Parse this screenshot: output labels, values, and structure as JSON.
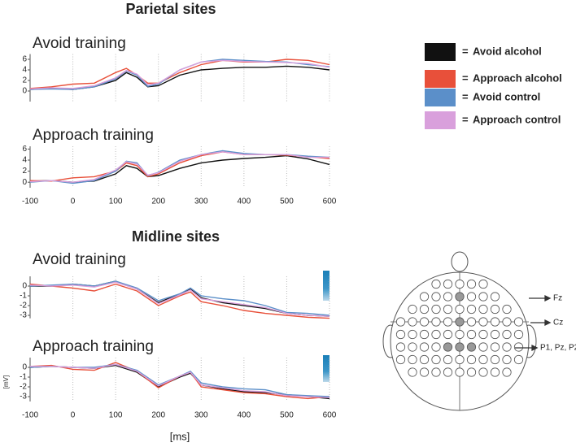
{
  "sections": [
    "Parietal sites",
    "Midline sites"
  ],
  "legend_separator": "=",
  "electrode_labels": [
    "Fz",
    "Cz",
    "P1, Pz, P2"
  ],
  "chart_data": [
    {
      "type": "line",
      "title": "Avoid training",
      "x": [
        -100,
        -50,
        0,
        50,
        100,
        125,
        150,
        175,
        200,
        250,
        300,
        350,
        400,
        450,
        500,
        550,
        600
      ],
      "xlim": [
        -100,
        600
      ],
      "xticks": [
        -100,
        0,
        100,
        200,
        300,
        400,
        500,
        600
      ],
      "show_xtick_labels": false,
      "ylim": [
        -2,
        7
      ],
      "yticks": [
        0,
        2,
        4,
        6
      ],
      "series": [
        {
          "name": "Avoid alcohol",
          "color": "#111111",
          "values": [
            0.3,
            0.5,
            0.3,
            0.8,
            2,
            3.5,
            2.6,
            0.8,
            1,
            3,
            4,
            4.3,
            4.5,
            4.5,
            4.7,
            4.5,
            4
          ]
        },
        {
          "name": "Approach alcohol",
          "color": "#e8503a",
          "values": [
            0.5,
            0.8,
            1.3,
            1.5,
            3.5,
            4.3,
            3,
            1.5,
            1.5,
            3.5,
            5,
            5.8,
            5.5,
            5.5,
            6,
            5.8,
            5
          ]
        },
        {
          "name": "Avoid control",
          "color": "#5b8fc9",
          "values": [
            0.3,
            0.4,
            0.3,
            0.8,
            2.3,
            3.8,
            3,
            0.9,
            1.3,
            4,
            5.5,
            6,
            5.8,
            5.6,
            5.5,
            5,
            4.6
          ]
        },
        {
          "name": "Approach control",
          "color": "#d9a0dc",
          "values": [
            0.4,
            0.6,
            0.5,
            1,
            2.5,
            3.9,
            3.2,
            1.2,
            1.5,
            4,
            5.5,
            5.8,
            5.6,
            5.5,
            5.4,
            5.2,
            4.5
          ]
        }
      ]
    },
    {
      "type": "line",
      "title": "Approach training",
      "x": [
        -100,
        -50,
        0,
        50,
        100,
        125,
        150,
        175,
        200,
        250,
        300,
        350,
        400,
        450,
        500,
        550,
        600
      ],
      "xlim": [
        -100,
        600
      ],
      "xticks": [
        -100,
        0,
        100,
        200,
        300,
        400,
        500,
        600
      ],
      "show_xtick_labels": true,
      "ylim": [
        -1,
        6.5
      ],
      "yticks": [
        0,
        2,
        4,
        6
      ],
      "series": [
        {
          "color": "#111111",
          "values": [
            0.2,
            0.3,
            0,
            0.2,
            1.5,
            3,
            2.5,
            1,
            1.2,
            2.5,
            3.5,
            4,
            4.3,
            4.5,
            4.8,
            4.2,
            3.2
          ]
        },
        {
          "color": "#e8503a",
          "values": [
            0.3,
            0.2,
            0.8,
            1,
            2,
            3.5,
            3,
            1,
            1.5,
            3.5,
            4.8,
            5.5,
            5,
            5,
            4.9,
            4.6,
            4.3
          ]
        },
        {
          "color": "#5b8fc9",
          "values": [
            0,
            0.3,
            -0.2,
            0.3,
            2,
            3.8,
            3.5,
            1.2,
            1.8,
            4,
            5,
            5.7,
            5.2,
            5,
            5,
            4.7,
            4.5
          ]
        },
        {
          "color": "#d9a0dc",
          "values": [
            0.1,
            0.3,
            0,
            0.5,
            2.2,
            3.7,
            3.3,
            1.3,
            1.7,
            3.8,
            5,
            5.5,
            5,
            5,
            5,
            4.5,
            4.5
          ]
        }
      ]
    },
    {
      "type": "line",
      "title": "Avoid training",
      "x": [
        -100,
        -50,
        0,
        50,
        100,
        150,
        200,
        250,
        275,
        300,
        350,
        400,
        450,
        500,
        550,
        600
      ],
      "xlim": [
        -100,
        600
      ],
      "xticks": [
        -100,
        0,
        100,
        200,
        300,
        400,
        500,
        600
      ],
      "show_xtick_labels": false,
      "ylim": [
        -3.3,
        1
      ],
      "yticks": [
        0,
        -1,
        -2,
        -3
      ],
      "series": [
        {
          "color": "#111111",
          "values": [
            0,
            0,
            0.2,
            0,
            0.5,
            -0.3,
            -1.7,
            -0.8,
            -0.3,
            -1.2,
            -1.7,
            -2,
            -2.3,
            -2.8,
            -3,
            -3.1
          ]
        },
        {
          "color": "#e8503a",
          "values": [
            0.2,
            0,
            -0.2,
            -0.5,
            0.2,
            -0.5,
            -2,
            -1,
            -0.6,
            -1.6,
            -2,
            -2.5,
            -2.8,
            -3,
            -3.2,
            -3.3
          ]
        },
        {
          "color": "#5b8fc9",
          "values": [
            0,
            0.1,
            0.2,
            0,
            0.5,
            -0.2,
            -1.5,
            -0.8,
            -0.2,
            -1,
            -1.3,
            -1.5,
            -2,
            -2.7,
            -2.8,
            -3
          ]
        },
        {
          "color": "#d9a0dc",
          "values": [
            0.1,
            0,
            0.1,
            -0.1,
            0.4,
            -0.3,
            -1.8,
            -0.9,
            -0.4,
            -1.3,
            -1.6,
            -1.9,
            -2.2,
            -2.8,
            -3,
            -3.1
          ]
        }
      ]
    },
    {
      "type": "line",
      "title": "Approach training",
      "xlabel": "[ms]",
      "ylabel": "[mV]",
      "x": [
        -100,
        -50,
        0,
        50,
        100,
        150,
        200,
        250,
        275,
        300,
        350,
        400,
        450,
        500,
        550,
        600
      ],
      "xlim": [
        -100,
        600
      ],
      "xticks": [
        -100,
        0,
        100,
        200,
        300,
        400,
        500,
        600
      ],
      "show_xtick_labels": true,
      "ylim": [
        -3.5,
        1
      ],
      "yticks": [
        0,
        -1,
        -2,
        -3
      ],
      "series": [
        {
          "color": "#111111",
          "values": [
            0,
            0.1,
            0,
            -0.1,
            0.2,
            -0.5,
            -2,
            -1,
            -0.6,
            -1.8,
            -2.2,
            -2.5,
            -2.6,
            -2.8,
            -3,
            -3.2
          ]
        },
        {
          "color": "#e8503a",
          "values": [
            0.1,
            0.2,
            -0.2,
            -0.3,
            0.5,
            -0.4,
            -2.1,
            -0.9,
            -0.5,
            -2,
            -2.3,
            -2.6,
            -2.7,
            -3,
            -3.2,
            -3
          ]
        },
        {
          "color": "#5b8fc9",
          "values": [
            0,
            0.1,
            0,
            0,
            0.3,
            -0.3,
            -1.8,
            -0.9,
            -0.4,
            -1.6,
            -2,
            -2.2,
            -2.3,
            -2.8,
            -2.9,
            -3
          ]
        },
        {
          "color": "#d9a0dc",
          "values": [
            0.1,
            0.1,
            0,
            -0.1,
            0.3,
            -0.4,
            -1.9,
            -0.9,
            -0.5,
            -1.8,
            -2.1,
            -2.4,
            -2.5,
            -2.9,
            -3,
            -3.1
          ]
        }
      ]
    }
  ]
}
